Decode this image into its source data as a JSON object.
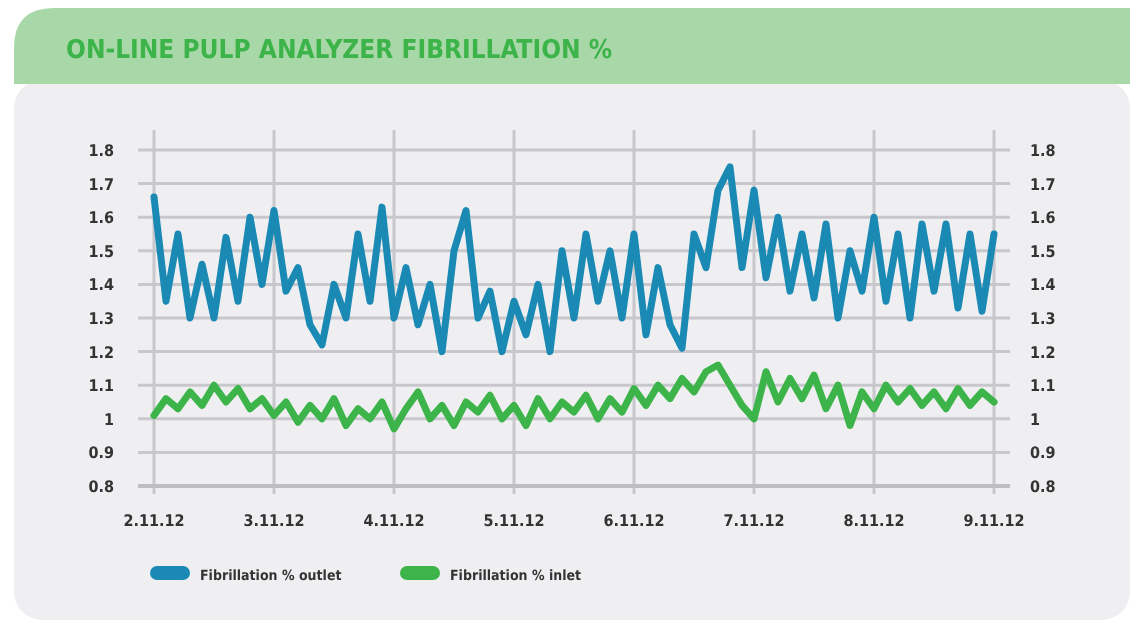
{
  "chart_data": {
    "type": "line",
    "title": "ON-LINE PULP ANALYZER FIBRILLATION %",
    "x": [
      "--11-02T00:00",
      "--11-02T02:24",
      "--11-02T04:48",
      "--11-02T07:12",
      "--11-02T09:36",
      "--11-02T12:00",
      "--11-02T14:24",
      "--11-02T16:48",
      "--11-02T19:12",
      "--11-02T21:36",
      "--11-03T00:00",
      "--11-03T02:24",
      "--11-03T04:48",
      "--11-03T07:12",
      "--11-03T09:36",
      "--11-03T12:00",
      "--11-03T14:24",
      "--11-03T16:48",
      "--11-03T19:12",
      "--11-03T21:36",
      "--11-04T00:00",
      "--11-04T02:24",
      "--11-04T04:48",
      "--11-04T07:12",
      "--11-04T09:36",
      "--11-04T12:00",
      "--11-04T14:24",
      "--11-04T16:48",
      "--11-04T19:12",
      "--11-04T21:36",
      "--11-05T00:00",
      "--11-05T02:24",
      "--11-05T04:48",
      "--11-05T07:12",
      "--11-05T09:36",
      "--11-05T12:00",
      "--11-05T14:24",
      "--11-05T16:48",
      "--11-05T19:12",
      "--11-05T21:36",
      "--11-06T00:00",
      "--11-06T02:24",
      "--11-06T04:48",
      "--11-06T07:12",
      "--11-06T09:36",
      "--11-06T12:00",
      "--11-06T14:24",
      "--11-06T16:48",
      "--11-06T19:12",
      "--11-06T21:36",
      "--11-07T00:00",
      "--11-07T02:24",
      "--11-07T04:48",
      "--11-07T07:12",
      "--11-07T09:36",
      "--11-07T12:00",
      "--11-07T14:24",
      "--11-07T16:48",
      "--11-07T19:12",
      "--11-07T21:36",
      "--11-08T00:00",
      "--11-08T02:24",
      "--11-08T04:48",
      "--11-08T07:12",
      "--11-08T09:36",
      "--11-08T12:00",
      "--11-08T14:24",
      "--11-08T16:48",
      "--11-08T19:12",
      "--11-08T21:36",
      "--11-09T00:00"
    ],
    "series": [
      {
        "name": "Fibrillation % outlet",
        "color": "#1a8ab5",
        "values": [
          1.66,
          1.35,
          1.55,
          1.3,
          1.46,
          1.3,
          1.54,
          1.35,
          1.6,
          1.4,
          1.62,
          1.38,
          1.45,
          1.28,
          1.22,
          1.4,
          1.3,
          1.55,
          1.35,
          1.63,
          1.3,
          1.45,
          1.28,
          1.4,
          1.2,
          1.5,
          1.62,
          1.3,
          1.38,
          1.2,
          1.35,
          1.25,
          1.4,
          1.2,
          1.5,
          1.3,
          1.55,
          1.35,
          1.5,
          1.3,
          1.55,
          1.25,
          1.45,
          1.28,
          1.21,
          1.55,
          1.45,
          1.68,
          1.75,
          1.45,
          1.68,
          1.42,
          1.6,
          1.38,
          1.55,
          1.36,
          1.58,
          1.3,
          1.5,
          1.38,
          1.6,
          1.35,
          1.55,
          1.3,
          1.58,
          1.38,
          1.58,
          1.33,
          1.55,
          1.32,
          1.55
        ]
      },
      {
        "name": "Fibrillation % inlet",
        "color": "#3cb44a",
        "values": [
          1.01,
          1.06,
          1.03,
          1.08,
          1.04,
          1.1,
          1.05,
          1.09,
          1.03,
          1.06,
          1.01,
          1.05,
          0.99,
          1.04,
          1.0,
          1.06,
          0.98,
          1.03,
          1.0,
          1.05,
          0.97,
          1.03,
          1.08,
          1.0,
          1.04,
          0.98,
          1.05,
          1.02,
          1.07,
          1.0,
          1.04,
          0.98,
          1.06,
          1.0,
          1.05,
          1.02,
          1.07,
          1.0,
          1.06,
          1.02,
          1.09,
          1.04,
          1.1,
          1.06,
          1.12,
          1.08,
          1.14,
          1.16,
          1.1,
          1.04,
          1.0,
          1.14,
          1.05,
          1.12,
          1.06,
          1.13,
          1.03,
          1.1,
          0.98,
          1.08,
          1.03,
          1.1,
          1.05,
          1.09,
          1.04,
          1.08,
          1.03,
          1.09,
          1.04,
          1.08,
          1.05
        ]
      }
    ],
    "xlim": [
      "--11-02",
      "--11-09"
    ],
    "xticks": [
      {
        "value": "--11-02",
        "label": "2.11.12"
      },
      {
        "value": "--11-03",
        "label": "3.11.12"
      },
      {
        "value": "--11-04",
        "label": "4.11.12"
      },
      {
        "value": "--11-05",
        "label": "5.11.12"
      },
      {
        "value": "--11-06",
        "label": "6.11.12"
      },
      {
        "value": "--11-07",
        "label": "7.11.12"
      },
      {
        "value": "--11-08",
        "label": "8.11.12"
      },
      {
        "value": "--11-09",
        "label": "9.11.12"
      }
    ],
    "ylim": [
      0.8,
      1.8
    ],
    "yticks": [
      0.8,
      0.9,
      1,
      1.1,
      1.2,
      1.3,
      1.4,
      1.5,
      1.6,
      1.7,
      1.8
    ],
    "y2lim": [
      0.8,
      1.8
    ],
    "y2ticks": [
      0.8,
      0.9,
      1,
      1.1,
      1.2,
      1.3,
      1.4,
      1.5,
      1.6,
      1.7,
      1.8
    ],
    "grid": true,
    "legend": "bottom left",
    "line_style": "solid",
    "marker": "none"
  }
}
